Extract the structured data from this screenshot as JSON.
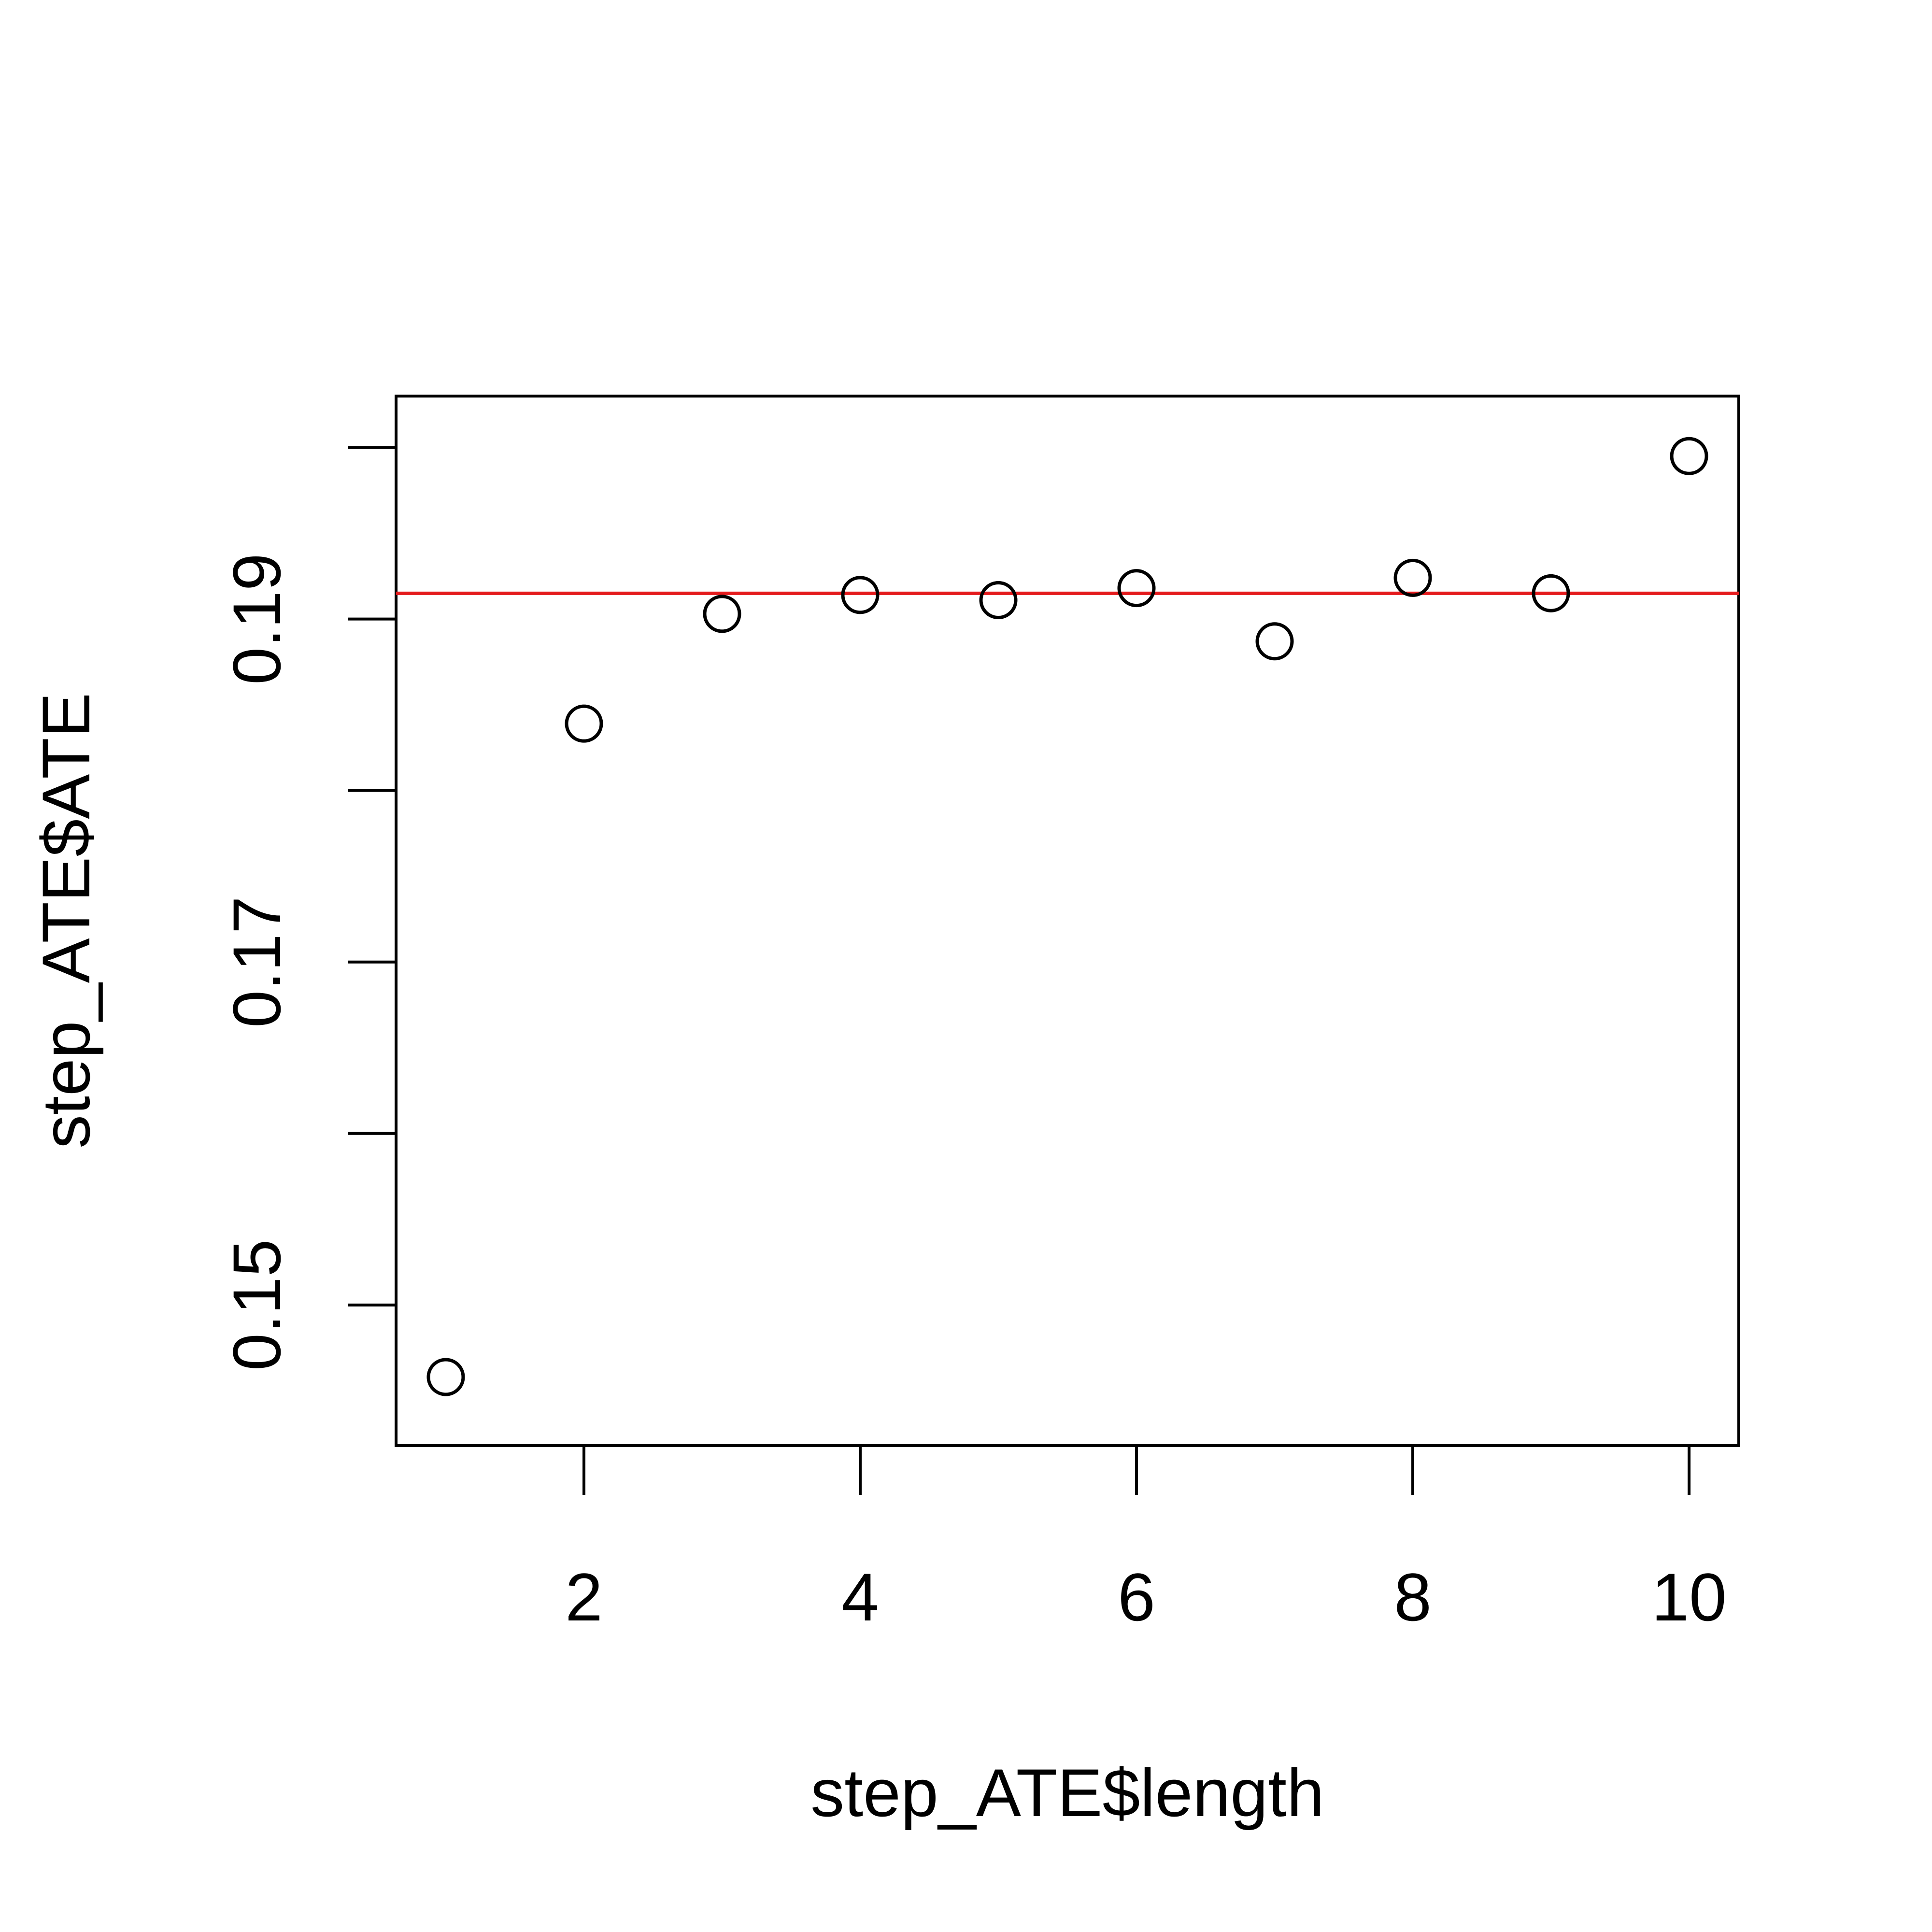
{
  "chart_data": {
    "type": "scatter",
    "title": "",
    "xlabel": "step_ATE$length",
    "ylabel": "step_ATE$ATE",
    "x": [
      1,
      2,
      3,
      4,
      5,
      6,
      7,
      8,
      9,
      10
    ],
    "y": [
      0.1458,
      0.1839,
      0.1903,
      0.1914,
      0.1911,
      0.1918,
      0.1887,
      0.1924,
      0.1915,
      0.1995
    ],
    "xlim": [
      0.64,
      10.36
    ],
    "ylim": [
      0.1418,
      0.203
    ],
    "xticks": [
      2,
      4,
      6,
      8,
      10
    ],
    "xtick_labels": [
      "2",
      "4",
      "6",
      "8",
      "10"
    ],
    "yticks": [
      0.15,
      0.16,
      0.17,
      0.18,
      0.19,
      0.2
    ],
    "ytick_labels": [
      "0.15",
      "",
      "0.17",
      "",
      "0.19",
      ""
    ],
    "reference_line": {
      "orientation": "horizontal",
      "y": 0.1915,
      "color": "#e41a1c"
    },
    "point_color": "#000000",
    "grid": false,
    "legend": "none"
  }
}
